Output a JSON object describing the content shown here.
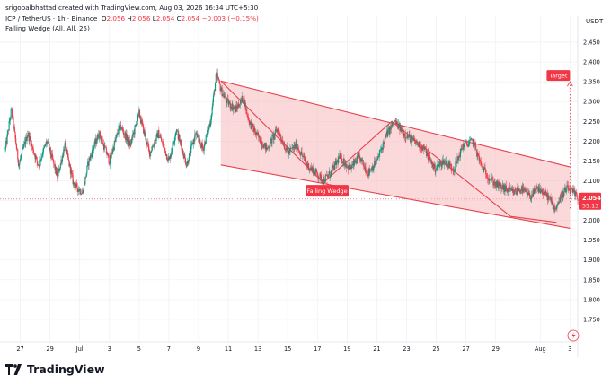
{
  "header": {
    "attribution": "srigopalbhattad created with TradingView.com, Aug 03, 2026 16:34 UTC+5:30",
    "symbol": "ICP / TetherUS · 1h · Binance",
    "o_label": "O",
    "o_value": "2.056",
    "h_label": "H",
    "h_value": "2.056",
    "l_label": "L",
    "l_value": "2.054",
    "c_label": "C",
    "c_value": "2.054",
    "change": "−0.003 (−0.15%)",
    "indicator": "Falling Wedge (All, All, 25)"
  },
  "currency": "USDT",
  "branding": "TradingView",
  "colors": {
    "up": "#089981",
    "down": "#f23645",
    "wedge_line": "#e8424d",
    "wedge_fill": "#f7b9bd"
  },
  "chart_data": {
    "type": "candlestick",
    "y_ticks": [
      "2.450",
      "2.400",
      "2.350",
      "2.300",
      "2.250",
      "2.200",
      "2.150",
      "2.100",
      "2.050",
      "2.000",
      "1.950",
      "1.900",
      "1.850",
      "1.800",
      "1.750"
    ],
    "ylim": [
      1.7,
      2.475
    ],
    "x_ticks": [
      "27",
      "29",
      "Jul",
      "3",
      "5",
      "7",
      "9",
      "11",
      "13",
      "15",
      "17",
      "19",
      "21",
      "23",
      "25",
      "27",
      "29",
      "Aug",
      "3"
    ],
    "x_range_days": [
      26,
      64.4
    ],
    "last_price": "2.054",
    "countdown": "55:13",
    "price_path": [
      [
        26.0,
        2.18
      ],
      [
        26.4,
        2.28
      ],
      [
        26.9,
        2.14
      ],
      [
        27.5,
        2.22
      ],
      [
        28.2,
        2.14
      ],
      [
        28.8,
        2.2
      ],
      [
        29.5,
        2.11
      ],
      [
        30.0,
        2.19
      ],
      [
        30.6,
        2.09
      ],
      [
        31.2,
        2.07
      ],
      [
        31.6,
        2.15
      ],
      [
        32.3,
        2.22
      ],
      [
        33.0,
        2.15
      ],
      [
        33.7,
        2.24
      ],
      [
        34.4,
        2.19
      ],
      [
        35.0,
        2.27
      ],
      [
        35.7,
        2.17
      ],
      [
        36.3,
        2.22
      ],
      [
        37.0,
        2.15
      ],
      [
        37.5,
        2.23
      ],
      [
        38.2,
        2.14
      ],
      [
        38.8,
        2.22
      ],
      [
        39.3,
        2.18
      ],
      [
        39.8,
        2.25
      ],
      [
        40.2,
        2.37
      ],
      [
        40.5,
        2.33
      ],
      [
        40.9,
        2.3
      ],
      [
        41.5,
        2.28
      ],
      [
        42.0,
        2.31
      ],
      [
        42.4,
        2.25
      ],
      [
        43.0,
        2.21
      ],
      [
        43.6,
        2.18
      ],
      [
        44.3,
        2.23
      ],
      [
        45.0,
        2.17
      ],
      [
        45.6,
        2.19
      ],
      [
        46.3,
        2.14
      ],
      [
        46.9,
        2.12
      ],
      [
        47.4,
        2.1
      ],
      [
        47.9,
        2.12
      ],
      [
        48.5,
        2.16
      ],
      [
        49.2,
        2.13
      ],
      [
        49.8,
        2.16
      ],
      [
        50.4,
        2.12
      ],
      [
        51.0,
        2.15
      ],
      [
        51.7,
        2.22
      ],
      [
        52.2,
        2.25
      ],
      [
        52.8,
        2.22
      ],
      [
        53.5,
        2.2
      ],
      [
        54.2,
        2.18
      ],
      [
        54.9,
        2.13
      ],
      [
        55.5,
        2.15
      ],
      [
        56.2,
        2.13
      ],
      [
        56.8,
        2.19
      ],
      [
        57.5,
        2.2
      ],
      [
        58.0,
        2.14
      ],
      [
        58.5,
        2.11
      ],
      [
        59.0,
        2.09
      ],
      [
        59.6,
        2.08
      ],
      [
        60.2,
        2.07
      ],
      [
        60.7,
        2.08
      ],
      [
        61.3,
        2.06
      ],
      [
        61.9,
        2.08
      ],
      [
        62.5,
        2.06
      ],
      [
        63.0,
        2.03
      ],
      [
        63.4,
        2.06
      ],
      [
        63.8,
        2.08
      ],
      [
        64.2,
        2.07
      ],
      [
        64.6,
        2.054
      ]
    ],
    "annotations": [
      {
        "type": "falling_wedge",
        "label": "Falling Wedge",
        "upper": [
          [
            40.5,
            2.352
          ],
          [
            64.0,
            2.135
          ]
        ],
        "lower": [
          [
            40.5,
            2.14
          ],
          [
            64.0,
            1.98
          ]
        ],
        "zigzag": [
          [
            40.5,
            2.352
          ],
          [
            47.4,
            2.095
          ],
          [
            52.0,
            2.25
          ],
          [
            60.0,
            2.01
          ],
          [
            63.1,
            1.995
          ]
        ]
      },
      {
        "type": "target",
        "label": "Target",
        "from": [
          64.0,
          2.03
        ],
        "to": [
          64.0,
          2.35
        ]
      }
    ]
  }
}
